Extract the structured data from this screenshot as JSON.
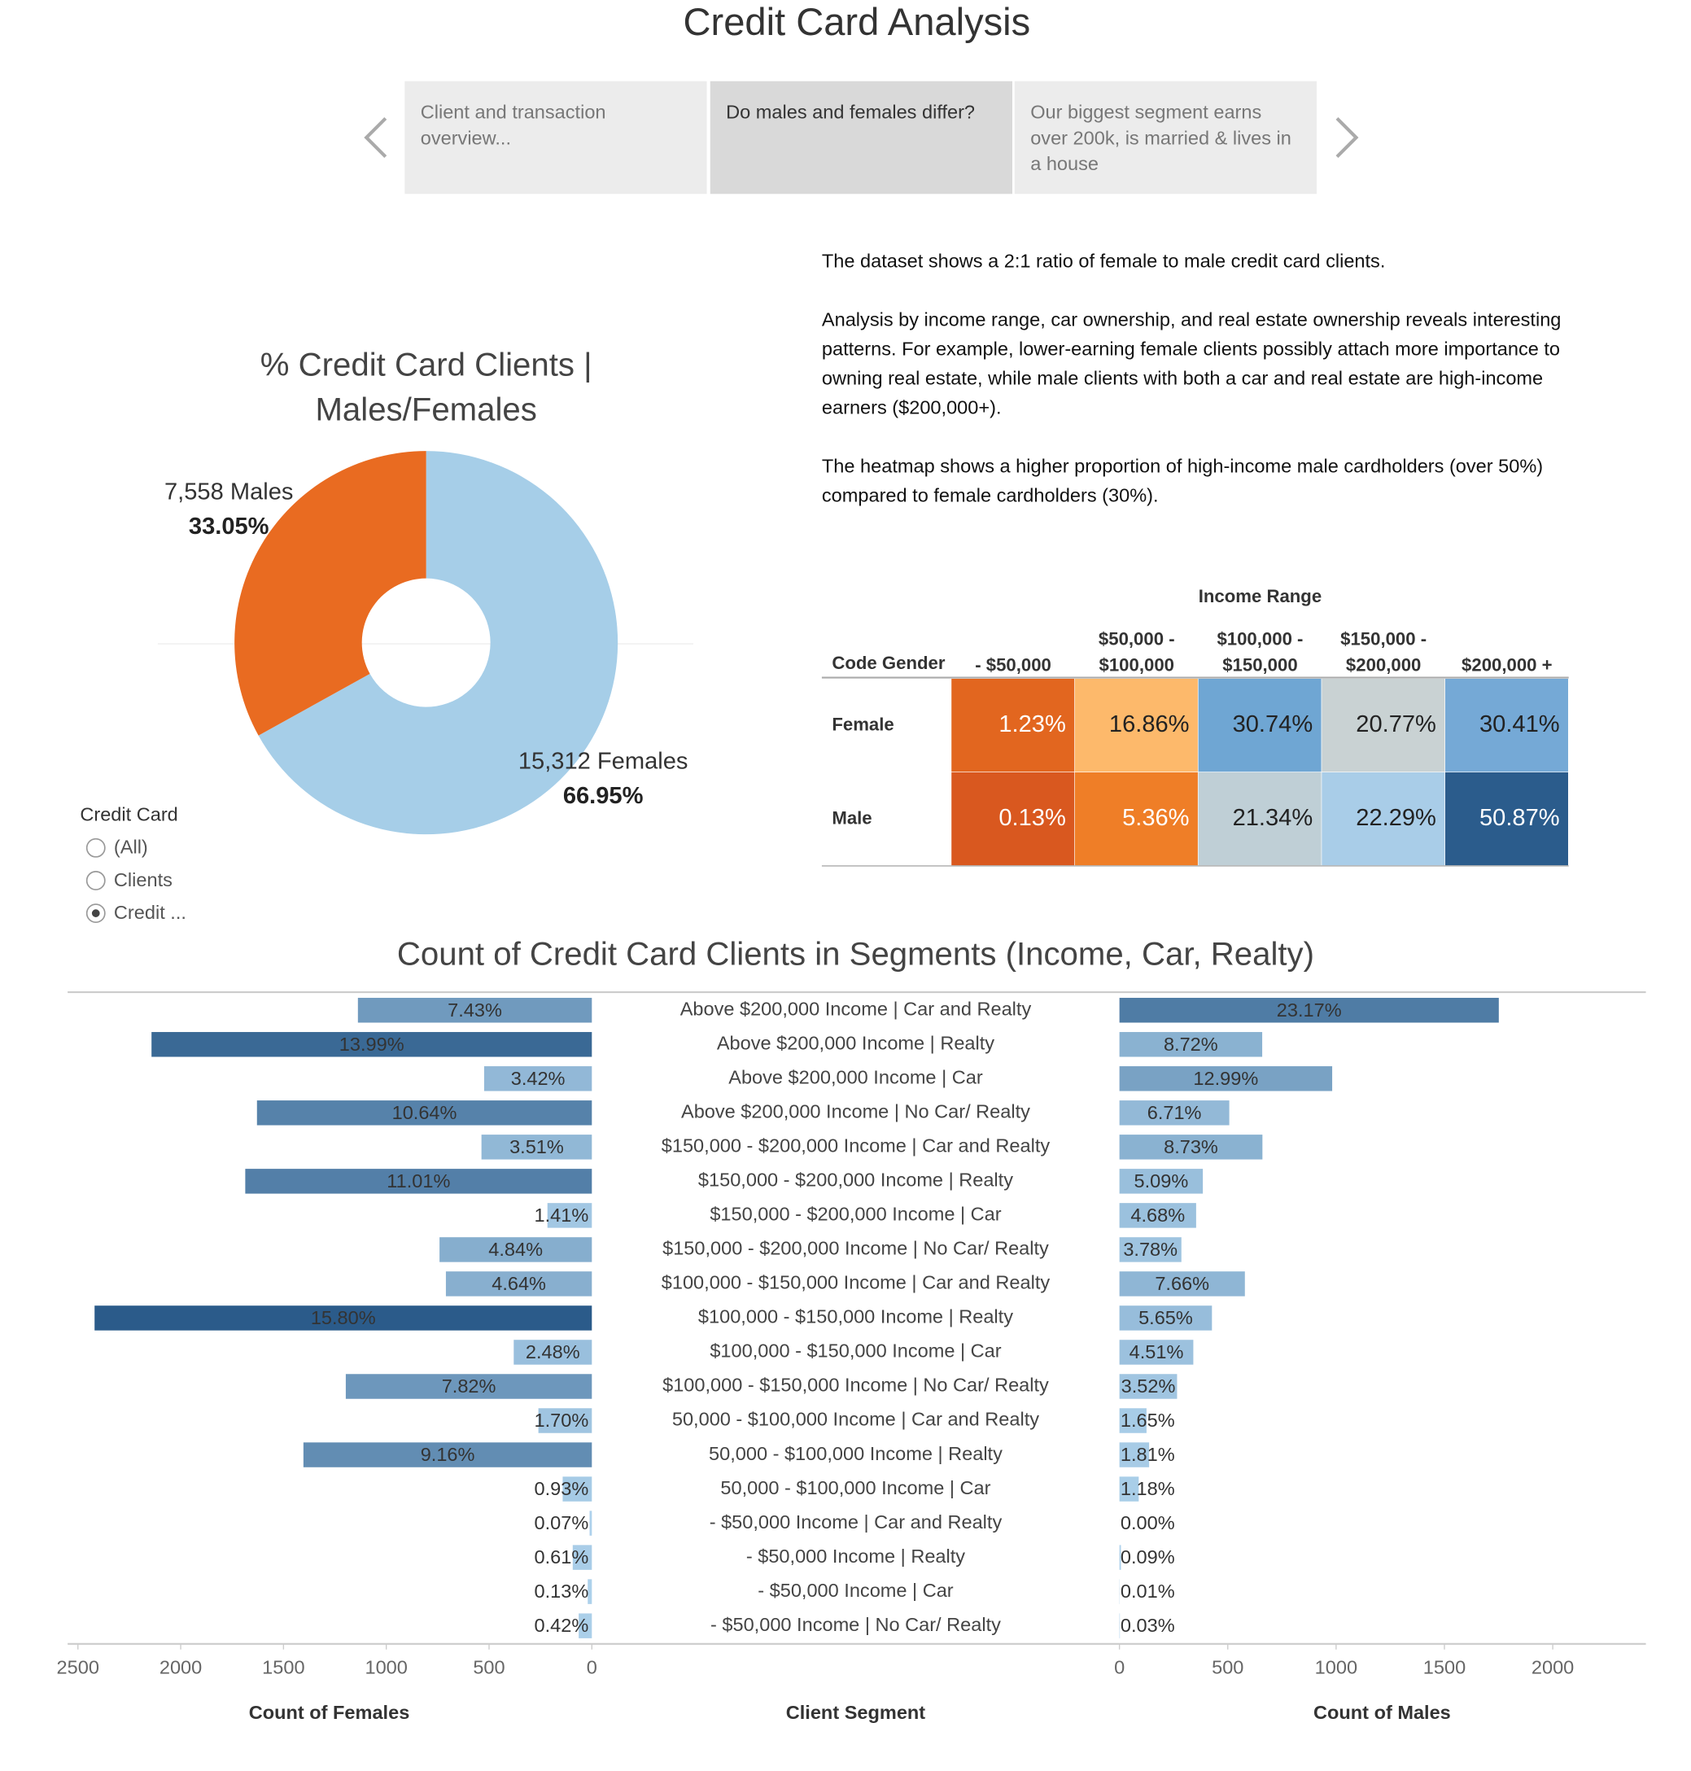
{
  "title": "Credit Card Analysis",
  "story_nav": {
    "items": [
      "Client and transaction overview...",
      "Do males and females differ?",
      "Our biggest segment earns over 200k, is married & lives in a house"
    ],
    "selected": 1
  },
  "description": {
    "paragraphs": [
      "The dataset shows a 2:1 ratio of female to male credit card clients.",
      "Analysis by income range, car ownership, and real estate ownership reveals interesting patterns. For example, lower-earning female clients possibly attach more importance to owning real estate, while male clients with both a car and real estate are high-income earners ($200,000+).",
      "The heatmap shows a higher proportion of high-income male cardholders (over 50%) compared to female cardholders (30%)."
    ]
  },
  "filter": {
    "title": "Credit Card",
    "options": [
      "(All)",
      "Clients",
      "Credit ..."
    ],
    "selected": 2
  },
  "chart_data": [
    {
      "type": "pie",
      "title": "% Credit Card Clients | Males/Females",
      "categories": [
        "Males",
        "Females"
      ],
      "counts": [
        7558,
        15312
      ],
      "count_labels": [
        "7,558",
        "15,312"
      ],
      "values": [
        33.05,
        66.95
      ],
      "value_labels": [
        "33.05%",
        "66.95%"
      ],
      "colors": [
        "#e96b21",
        "#a6cee8"
      ],
      "donut": true
    },
    {
      "type": "heatmap",
      "x_label": "Income Range",
      "y_label": "Code Gender",
      "columns": [
        "- $50,000",
        "$50,000 - $100,000",
        "$100,000 - $150,000",
        "$150,000 - $200,000",
        "$200,000 +"
      ],
      "rows": [
        "Female",
        "Male"
      ],
      "values": [
        [
          1.23,
          16.86,
          30.74,
          20.77,
          30.41
        ],
        [
          0.13,
          5.36,
          21.34,
          22.29,
          50.87
        ]
      ],
      "value_labels": [
        [
          "1.23%",
          "16.86%",
          "30.74%",
          "20.77%",
          "30.41%"
        ],
        [
          "0.13%",
          "5.36%",
          "21.34%",
          "22.29%",
          "50.87%"
        ]
      ],
      "colors": [
        [
          "#e2661f",
          "#fdb96b",
          "#6fa6d3",
          "#c9d2d3",
          "#75a9d6"
        ],
        [
          "#d9581f",
          "#ef7e27",
          "#bfcfd6",
          "#a9cde8",
          "#2b5c8c"
        ]
      ]
    },
    {
      "type": "diverging_bar",
      "title": "Count of Credit Card Clients in Segments (Income, Car, Realty)",
      "category_label": "Client Segment",
      "categories": [
        "Above $200,000 Income | Car and Realty",
        "Above $200,000 Income | Realty",
        "Above $200,000 Income | Car",
        "Above $200,000 Income | No Car/ Realty",
        "$150,000 - $200,000 Income | Car and Realty",
        "$150,000 - $200,000 Income | Realty",
        "$150,000 - $200,000 Income | Car",
        "$150,000 - $200,000 Income | No Car/ Realty",
        "$100,000 - $150,000 Income | Car and Realty",
        "$100,000 - $150,000 Income | Realty",
        "$100,000 - $150,000 Income | Car",
        "$100,000 - $150,000 Income | No Car/ Realty",
        "50,000 - $100,000 Income | Car and Realty",
        "50,000 - $100,000 Income | Realty",
        "50,000 - $100,000 Income | Car",
        "- $50,000 Income | Car and Realty",
        "- $50,000 Income | Realty",
        "- $50,000 Income | Car",
        "- $50,000 Income | No Car/ Realty"
      ],
      "color_range": [
        "#aed2ec",
        "#2b5b8a"
      ],
      "series": [
        {
          "side": "left",
          "xlabel": "Count of Females",
          "xlim": [
            0,
            2550
          ],
          "xticks": [
            0,
            500,
            1000,
            1500,
            2000,
            2500
          ],
          "values": [
            1138,
            2142,
            524,
            1629,
            537,
            1686,
            216,
            741,
            710,
            2419,
            380,
            1197,
            260,
            1403,
            142,
            11,
            93,
            20,
            64
          ],
          "value_labels": [
            "7.43%",
            "13.99%",
            "3.42%",
            "10.64%",
            "3.51%",
            "11.01%",
            "1.41%",
            "4.84%",
            "4.64%",
            "15.80%",
            "2.48%",
            "7.82%",
            "1.70%",
            "9.16%",
            "0.93%",
            "0.07%",
            "0.61%",
            "0.13%",
            "0.42%"
          ]
        },
        {
          "side": "right",
          "xlabel": "Count of Males",
          "xlim": [
            0,
            2430
          ],
          "xticks": [
            0,
            500,
            1000,
            1500,
            2000
          ],
          "values": [
            1751,
            659,
            982,
            507,
            660,
            385,
            354,
            286,
            579,
            427,
            341,
            266,
            125,
            137,
            89,
            0,
            7,
            1,
            2
          ],
          "value_labels": [
            "23.17%",
            "8.72%",
            "12.99%",
            "6.71%",
            "8.73%",
            "5.09%",
            "4.68%",
            "3.78%",
            "7.66%",
            "5.65%",
            "4.51%",
            "3.52%",
            "1.65%",
            "1.81%",
            "1.18%",
            "0.00%",
            "0.09%",
            "0.01%",
            "0.03%"
          ]
        }
      ]
    }
  ]
}
